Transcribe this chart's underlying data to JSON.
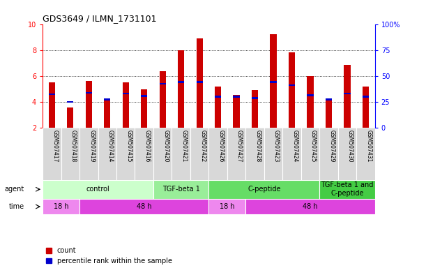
{
  "title": "GDS3649 / ILMN_1731101",
  "samples": [
    "GSM507417",
    "GSM507418",
    "GSM507419",
    "GSM507414",
    "GSM507415",
    "GSM507416",
    "GSM507420",
    "GSM507421",
    "GSM507422",
    "GSM507426",
    "GSM507427",
    "GSM507428",
    "GSM507423",
    "GSM507424",
    "GSM507425",
    "GSM507429",
    "GSM507430",
    "GSM507431"
  ],
  "count_values": [
    5.5,
    3.6,
    5.6,
    4.2,
    5.5,
    5.0,
    6.35,
    8.0,
    8.9,
    5.2,
    4.55,
    4.9,
    9.2,
    7.85,
    6.0,
    4.1,
    6.85,
    5.2
  ],
  "percentile_values": [
    4.6,
    4.0,
    4.7,
    4.2,
    4.65,
    4.45,
    5.4,
    5.55,
    5.55,
    4.4,
    4.4,
    4.3,
    5.55,
    5.3,
    4.5,
    4.2,
    4.65,
    4.4
  ],
  "bar_color": "#cc0000",
  "percentile_color": "#0000cc",
  "ylim_left": [
    2,
    10
  ],
  "ylim_right": [
    0,
    100
  ],
  "yticks_left": [
    2,
    4,
    6,
    8,
    10
  ],
  "yticks_right": [
    0,
    25,
    50,
    75,
    100
  ],
  "ytick_labels_right": [
    "0",
    "25",
    "50",
    "75",
    "100%"
  ],
  "agent_groups": [
    {
      "label": "control",
      "start": 0,
      "end": 5,
      "color": "#ccffcc"
    },
    {
      "label": "TGF-beta 1",
      "start": 6,
      "end": 8,
      "color": "#99ee99"
    },
    {
      "label": "C-peptide",
      "start": 9,
      "end": 14,
      "color": "#66dd66"
    },
    {
      "label": "TGF-beta 1 and\nC-peptide",
      "start": 15,
      "end": 17,
      "color": "#44cc44"
    }
  ],
  "time_groups": [
    {
      "label": "18 h",
      "start": 0,
      "end": 1,
      "color": "#ee88ee"
    },
    {
      "label": "48 h",
      "start": 2,
      "end": 8,
      "color": "#dd44dd"
    },
    {
      "label": "18 h",
      "start": 9,
      "end": 10,
      "color": "#ee88ee"
    },
    {
      "label": "48 h",
      "start": 11,
      "end": 17,
      "color": "#dd44dd"
    }
  ],
  "legend_items": [
    {
      "label": "count",
      "color": "#cc0000"
    },
    {
      "label": "percentile rank within the sample",
      "color": "#0000cc"
    }
  ],
  "bar_width": 0.35,
  "xtick_bg": "#d8d8d8",
  "plot_bg": "#ffffff",
  "label_fontsize": 7,
  "tick_fontsize": 7
}
